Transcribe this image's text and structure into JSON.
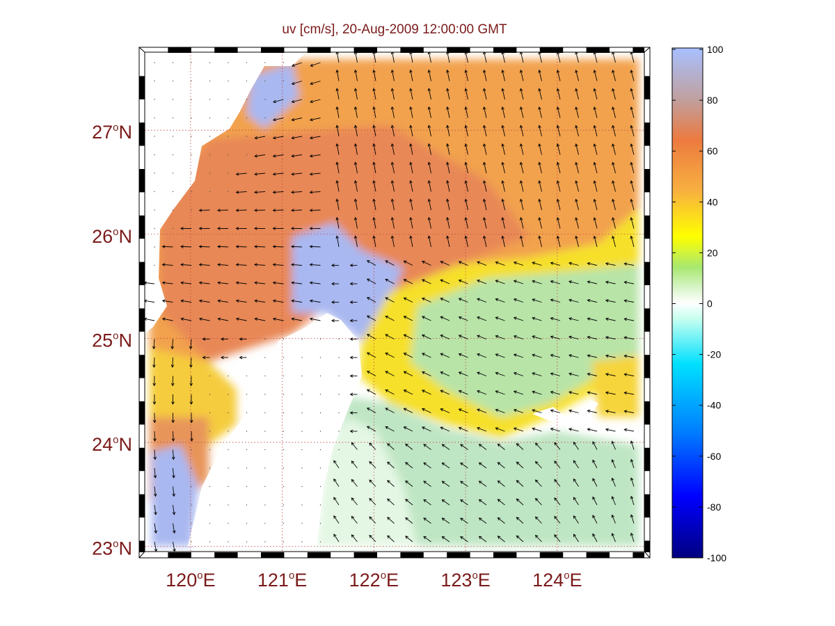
{
  "title": "uv [cm/s], 20-Aug-2009 12:00:00 GMT",
  "colors": {
    "text": "#7a1a1a",
    "ocean_north": "#f0a050",
    "ocean_core": "#e88a55",
    "ocean_blue": "#a9b8f0",
    "ocean_yellow": "#f6e42e",
    "ocean_green": "#b6e4b4",
    "ocean_pale": "#e6f8e6",
    "grid": "#c04040",
    "arrow": "#000000"
  },
  "map": {
    "lon_range": [
      119.5,
      124.95
    ],
    "lat_range": [
      22.95,
      27.75
    ],
    "lon_ticks": [
      {
        "value": 120,
        "label": "120",
        "unit": "E"
      },
      {
        "value": 121,
        "label": "121",
        "unit": "E"
      },
      {
        "value": 122,
        "label": "122",
        "unit": "E"
      },
      {
        "value": 123,
        "label": "123",
        "unit": "E"
      },
      {
        "value": 124,
        "label": "124",
        "unit": "E"
      }
    ],
    "lat_ticks": [
      {
        "value": 23,
        "label": "23",
        "unit": "N"
      },
      {
        "value": 24,
        "label": "24",
        "unit": "N"
      },
      {
        "value": 25,
        "label": "25",
        "unit": "N"
      },
      {
        "value": 26,
        "label": "26",
        "unit": "N"
      },
      {
        "value": 27,
        "label": "27",
        "unit": "N"
      }
    ],
    "degree_symbol": "o"
  },
  "colorbar": {
    "min": -100,
    "max": 100,
    "ticks": [
      "100",
      "80",
      "60",
      "40",
      "20",
      "0",
      "-20",
      "-40",
      "-60",
      "-80",
      "-100"
    ]
  }
}
